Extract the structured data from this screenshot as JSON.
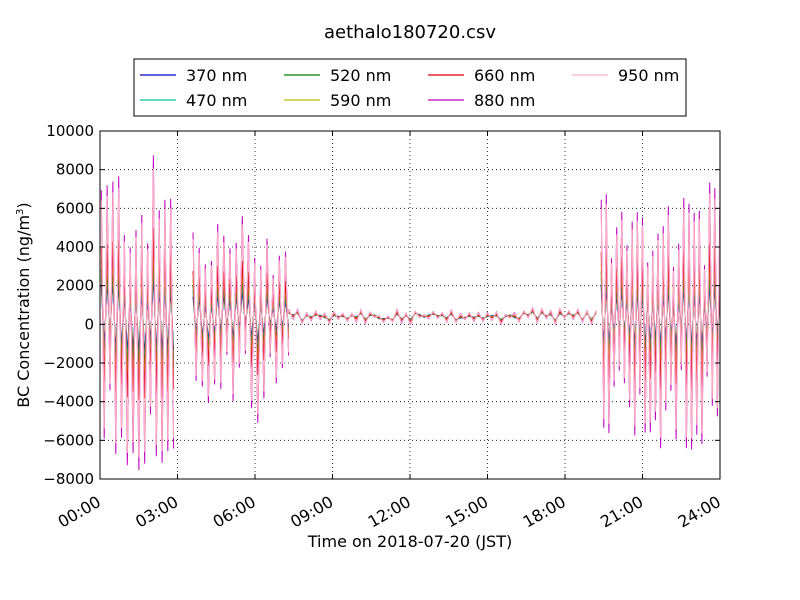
{
  "chart_data": {
    "type": "line",
    "title": "aethalo180720.csv",
    "xlabel": "Time on 2018-07-20 (JST)",
    "ylabel_main": "BC Concentration (ng/m",
    "ylabel_sup": "3",
    "ylabel_close": ")",
    "xlim": [
      0,
      24
    ],
    "ylim": [
      -8000,
      10000
    ],
    "grid": true,
    "legend_position": "top",
    "x_ticks": [
      0,
      3,
      6,
      9,
      12,
      15,
      18,
      21,
      24
    ],
    "x_tick_labels": [
      "00:00",
      "03:00",
      "06:00",
      "09:00",
      "12:00",
      "15:00",
      "18:00",
      "21:00",
      "24:00"
    ],
    "y_ticks": [
      -8000,
      -6000,
      -4000,
      -2000,
      0,
      2000,
      4000,
      6000,
      8000,
      10000
    ],
    "y_tick_labels": [
      "−8000",
      "−6000",
      "−4000",
      "−2000",
      "0",
      "2000",
      "4000",
      "6000",
      "8000",
      "10000"
    ],
    "series": [
      {
        "name": "370 nm",
        "color": "#0000cc"
      },
      {
        "name": "470 nm",
        "color": "#00c0a0"
      },
      {
        "name": "520 nm",
        "color": "#008000"
      },
      {
        "name": "590 nm",
        "color": "#bfbf00"
      },
      {
        "name": "660 nm",
        "color": "#dd0000"
      },
      {
        "name": "880 nm",
        "color": "#bf00bf"
      },
      {
        "name": "950 nm",
        "color": "#ffb0c0"
      }
    ],
    "segments": [
      {
        "start": 0.05,
        "end": 2.85,
        "amplitude": 8500,
        "period": 0.22
      },
      {
        "start": 3.6,
        "end": 7.3,
        "amplitude": 5500,
        "period": 0.24
      },
      {
        "start": 7.3,
        "end": 19.2,
        "amplitude": 350,
        "period": 0.35
      },
      {
        "start": 19.4,
        "end": 24.0,
        "amplitude": 7000,
        "period": 0.2
      }
    ],
    "baseline": 400
  }
}
